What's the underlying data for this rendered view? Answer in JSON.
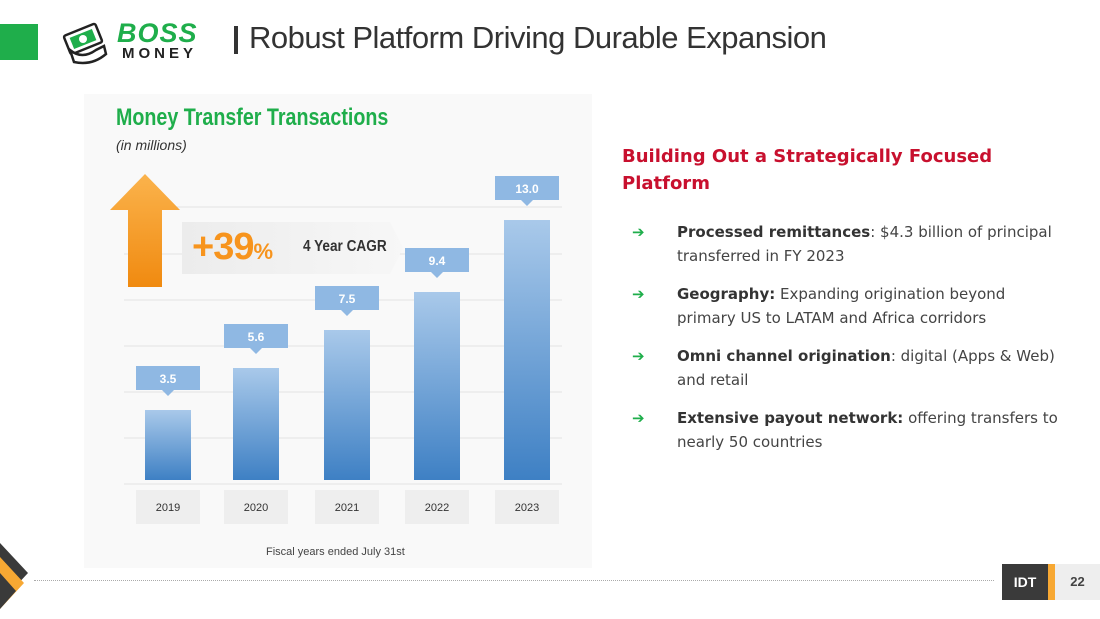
{
  "header": {
    "logo_boss": "BOSS",
    "logo_money": "MONEY",
    "title": "Robust Platform Driving Durable Expansion"
  },
  "chart_data": {
    "type": "bar",
    "title": "Money Transfer Transactions",
    "subtitle": "(in millions)",
    "categories": [
      "2019",
      "2020",
      "2021",
      "2022",
      "2023"
    ],
    "values": [
      3.5,
      5.6,
      7.5,
      9.4,
      13.0
    ],
    "data_labels": [
      "3.5",
      "5.6",
      "7.5",
      "9.4",
      "13.0"
    ],
    "xlabel": "Fiscal years ended July 31st",
    "ylabel": "",
    "ylim": [
      0,
      14
    ],
    "grid": true,
    "legend": "none",
    "annotation": {
      "value": "+39",
      "unit": "%",
      "label": "4 Year CAGR"
    },
    "colors": {
      "bar_top": "#a9c9ea",
      "bar_bottom": "#3e80c4",
      "label_box": "#8fb8e3",
      "arrow": "#f7941d"
    }
  },
  "right": {
    "heading": "Building Out a Strategically Focused Platform",
    "bullets": [
      {
        "bold": "Processed remittances",
        "text": ": $4.3 billion of principal transferred in FY 2023"
      },
      {
        "bold": "Geography:",
        "text": " Expanding origination beyond primary US to LATAM and Africa corridors"
      },
      {
        "bold": "Omni channel origination",
        "text": ": digital (Apps & Web) and retail"
      },
      {
        "bold": "Extensive payout network:",
        "text": "  offering transfers to  nearly 50 countries"
      }
    ],
    "arrow_glyph": "➔"
  },
  "footer": {
    "brand": "IDT",
    "page_number": "22"
  },
  "colors": {
    "green": "#1fae4b",
    "red": "#c8102e",
    "orange": "#f7941d"
  }
}
